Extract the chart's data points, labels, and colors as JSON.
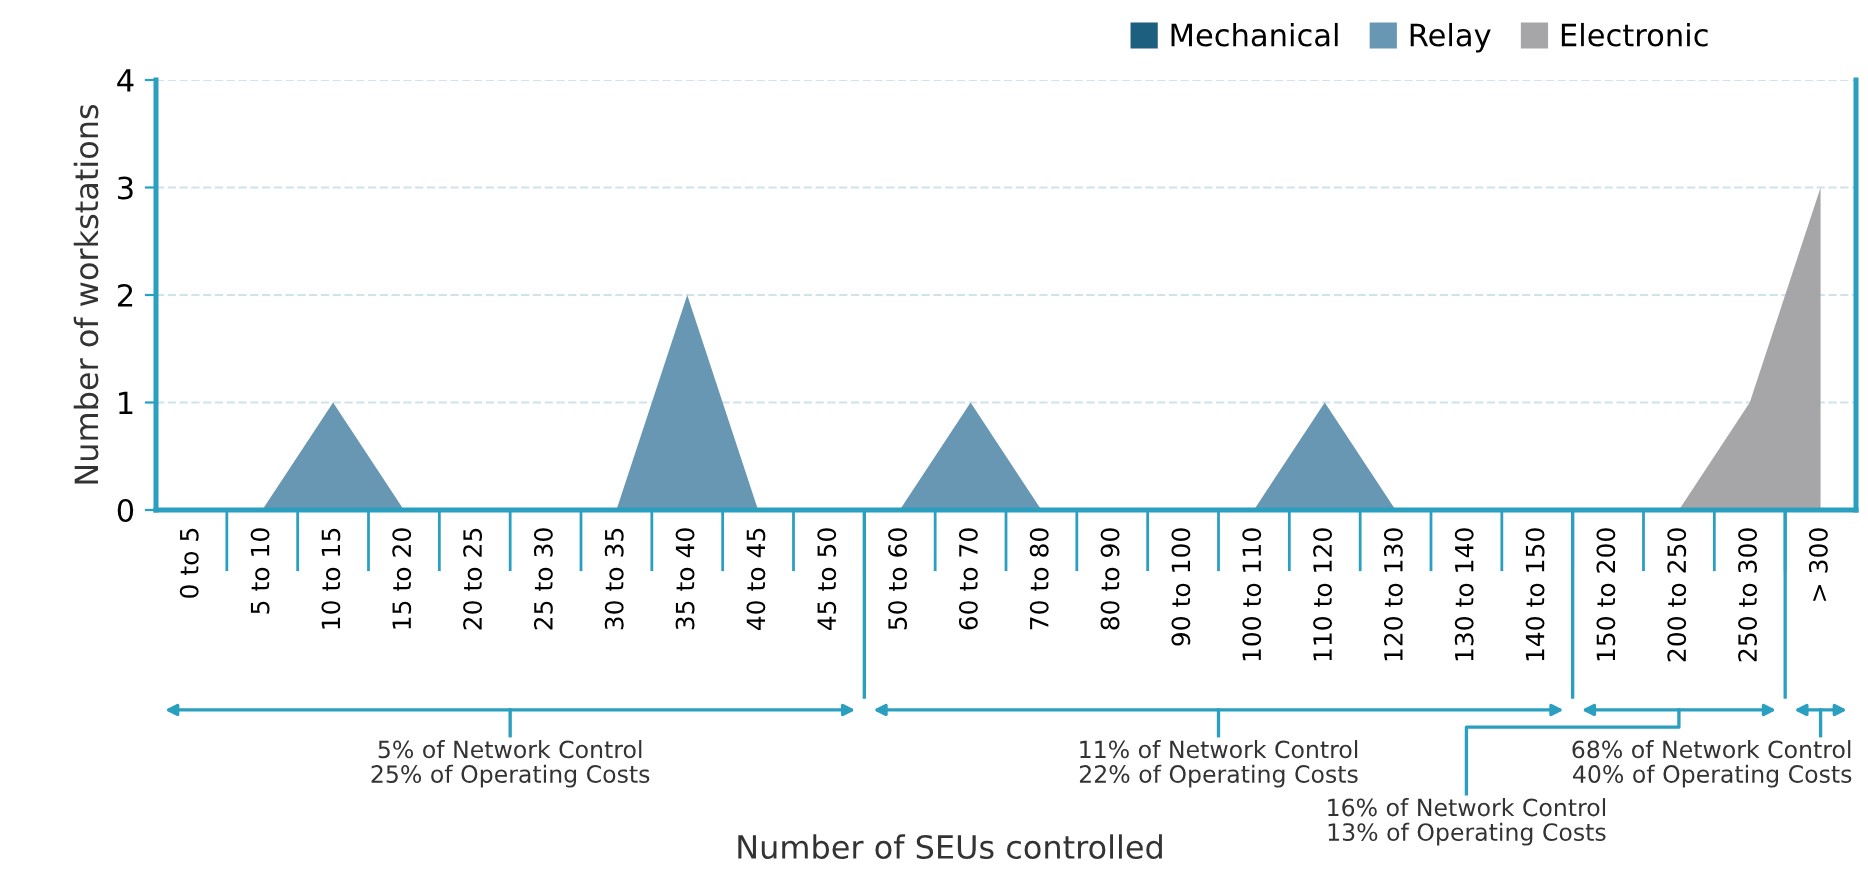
{
  "chart_data": {
    "type": "area",
    "ylabel": "Number of workstations",
    "categories": [
      "0 to 5",
      "5 to 10",
      "10 to 15",
      "15 to 20",
      "20 to 25",
      "25 to 30",
      "30 to 35",
      "35 to 40",
      "40 to 45",
      "45 to 50",
      "50 to 60",
      "60 to 70",
      "70 to 80",
      "80 to 90",
      "90 to 100",
      "100 to 110",
      "110 to 120",
      "120 to 130",
      "130 to 140",
      "140 to 150",
      "150 to 200",
      "200 to 250",
      "250 to 300",
      "> 300"
    ],
    "series": [
      {
        "name": "Mechanical",
        "color": "#1d5f7e",
        "values": [
          null,
          null,
          null,
          null,
          null,
          null,
          null,
          null,
          null,
          null,
          null,
          null,
          null,
          null,
          null,
          null,
          null,
          null,
          null,
          null,
          null,
          null,
          null,
          null
        ]
      },
      {
        "name": "Relay",
        "color": "#6897b3",
        "values": [
          0,
          0,
          1,
          0,
          0,
          0,
          0,
          2,
          0,
          0,
          0,
          1,
          0,
          0,
          0,
          0,
          1,
          0,
          0,
          0,
          0,
          0,
          0,
          0
        ]
      },
      {
        "name": "Electronic",
        "color": "#a6a6a9",
        "values": [
          0,
          0,
          0,
          0,
          0,
          0,
          0,
          0,
          0,
          0,
          0,
          0,
          0,
          0,
          0,
          0,
          0,
          0,
          0,
          0,
          0,
          0,
          1,
          3
        ]
      }
    ],
    "ylim": [
      0,
      4
    ],
    "yticks": [
      0,
      1,
      2,
      3,
      4
    ],
    "grid": "y",
    "legend": "top right",
    "annotations": [
      "5% of Network Control\n25% of Operating Costs",
      "11% of Network Control\n22% of Operating Costs",
      "16% of Network Control\n13% of Operating Costs",
      "68% of Network Control\n40% of Operating Costs",
      "Number of SEUs controlled"
    ]
  }
}
